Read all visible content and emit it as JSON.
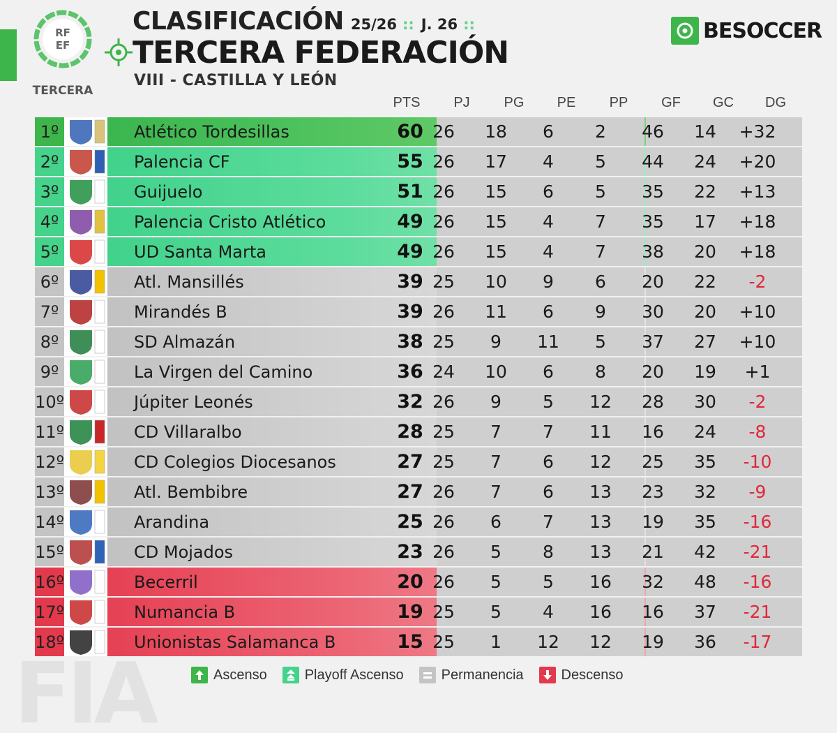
{
  "header": {
    "title": "CLASIFICACIÓN",
    "season": "25/26",
    "separator": "::",
    "round": "J. 26",
    "league": "TERCERA FEDERACIÓN",
    "group": "VIII - CASTILLA Y LEÓN"
  },
  "rfef_logo": {
    "line1": "RF",
    "line2": "EF",
    "caption": "TERCERA"
  },
  "brand": {
    "name": "BESOCCER",
    "color": "#3db54a"
  },
  "columns": [
    "PTS",
    "PJ",
    "PG",
    "PE",
    "PP",
    "GF",
    "GC",
    "DG"
  ],
  "colors": {
    "ascenso": "#3db54a",
    "playoff": "#45d28a",
    "permanencia": "#c4c4c4",
    "descenso": "#e3394c",
    "negative_dg": "#e0283a"
  },
  "rows": [
    {
      "pos": "1º",
      "team": "Atlético Tordesillas",
      "zone": "ascenso",
      "crest": "tordesillas-crest",
      "pts": "60",
      "pj": "26",
      "pg": "18",
      "pe": "6",
      "pp": "2",
      "gf": "46",
      "gc": "14",
      "dg": "+32"
    },
    {
      "pos": "2º",
      "team": "Palencia CF",
      "zone": "playoff",
      "crest": "palencia-crest",
      "pts": "55",
      "pj": "26",
      "pg": "17",
      "pe": "4",
      "pp": "5",
      "gf": "44",
      "gc": "24",
      "dg": "+20"
    },
    {
      "pos": "3º",
      "team": "Guijuelo",
      "zone": "playoff",
      "crest": "guijuelo-crest",
      "pts": "51",
      "pj": "26",
      "pg": "15",
      "pe": "6",
      "pp": "5",
      "gf": "35",
      "gc": "22",
      "dg": "+13"
    },
    {
      "pos": "4º",
      "team": "Palencia Cristo Atlético",
      "zone": "playoff",
      "crest": "cristo-crest",
      "pts": "49",
      "pj": "26",
      "pg": "15",
      "pe": "4",
      "pp": "7",
      "gf": "35",
      "gc": "17",
      "dg": "+18"
    },
    {
      "pos": "5º",
      "team": "UD Santa Marta",
      "zone": "playoff",
      "crest": "santa-marta-crest",
      "pts": "49",
      "pj": "26",
      "pg": "15",
      "pe": "4",
      "pp": "7",
      "gf": "38",
      "gc": "20",
      "dg": "+18"
    },
    {
      "pos": "6º",
      "team": "Atl. Mansillés",
      "zone": "permanencia",
      "crest": "mansilles-crest",
      "pts": "39",
      "pj": "25",
      "pg": "10",
      "pe": "9",
      "pp": "6",
      "gf": "20",
      "gc": "22",
      "dg": "-2"
    },
    {
      "pos": "7º",
      "team": "Mirandés B",
      "zone": "permanencia",
      "crest": "mirandes-crest",
      "pts": "39",
      "pj": "26",
      "pg": "11",
      "pe": "6",
      "pp": "9",
      "gf": "30",
      "gc": "20",
      "dg": "+10"
    },
    {
      "pos": "8º",
      "team": "SD Almazán",
      "zone": "permanencia",
      "crest": "almazan-crest",
      "pts": "38",
      "pj": "25",
      "pg": "9",
      "pe": "11",
      "pp": "5",
      "gf": "37",
      "gc": "27",
      "dg": "+10"
    },
    {
      "pos": "9º",
      "team": "La Virgen del Camino",
      "zone": "permanencia",
      "crest": "virgen-camino-crest",
      "pts": "36",
      "pj": "24",
      "pg": "10",
      "pe": "6",
      "pp": "8",
      "gf": "20",
      "gc": "19",
      "dg": "+1"
    },
    {
      "pos": "10º",
      "team": "Júpiter Leonés",
      "zone": "permanencia",
      "crest": "jupiter-crest",
      "pts": "32",
      "pj": "26",
      "pg": "9",
      "pe": "5",
      "pp": "12",
      "gf": "28",
      "gc": "30",
      "dg": "-2"
    },
    {
      "pos": "11º",
      "team": "CD Villaralbo",
      "zone": "permanencia",
      "crest": "villaralbo-crest",
      "pts": "28",
      "pj": "25",
      "pg": "7",
      "pe": "7",
      "pp": "11",
      "gf": "16",
      "gc": "24",
      "dg": "-8"
    },
    {
      "pos": "12º",
      "team": "CD Colegios Diocesanos",
      "zone": "permanencia",
      "crest": "diocesanos-crest",
      "pts": "27",
      "pj": "25",
      "pg": "7",
      "pe": "6",
      "pp": "12",
      "gf": "25",
      "gc": "35",
      "dg": "-10"
    },
    {
      "pos": "13º",
      "team": "Atl. Bembibre",
      "zone": "permanencia",
      "crest": "bembibre-crest",
      "pts": "27",
      "pj": "26",
      "pg": "7",
      "pe": "6",
      "pp": "13",
      "gf": "23",
      "gc": "32",
      "dg": "-9"
    },
    {
      "pos": "14º",
      "team": "Arandina",
      "zone": "permanencia",
      "crest": "arandina-crest",
      "pts": "25",
      "pj": "26",
      "pg": "6",
      "pe": "7",
      "pp": "13",
      "gf": "19",
      "gc": "35",
      "dg": "-16"
    },
    {
      "pos": "15º",
      "team": "CD Mojados",
      "zone": "permanencia",
      "crest": "mojados-crest",
      "pts": "23",
      "pj": "26",
      "pg": "5",
      "pe": "8",
      "pp": "13",
      "gf": "21",
      "gc": "42",
      "dg": "-21"
    },
    {
      "pos": "16º",
      "team": "Becerril",
      "zone": "descenso",
      "crest": "becerril-crest",
      "pts": "20",
      "pj": "26",
      "pg": "5",
      "pe": "5",
      "pp": "16",
      "gf": "32",
      "gc": "48",
      "dg": "-16"
    },
    {
      "pos": "17º",
      "team": "Numancia B",
      "zone": "descenso",
      "crest": "numancia-crest",
      "pts": "19",
      "pj": "25",
      "pg": "5",
      "pe": "4",
      "pp": "16",
      "gf": "16",
      "gc": "37",
      "dg": "-21"
    },
    {
      "pos": "18º",
      "team": "Unionistas Salamanca B",
      "zone": "descenso",
      "crest": "unionistas-crest",
      "pts": "15",
      "pj": "25",
      "pg": "1",
      "pe": "12",
      "pp": "12",
      "gf": "19",
      "gc": "36",
      "dg": "-17"
    }
  ],
  "legend": [
    {
      "label": "Ascenso",
      "zone": "ascenso",
      "icon": "arrow-up-icon"
    },
    {
      "label": "Playoff Ascenso",
      "zone": "playoff",
      "icon": "double-arrow-up-icon"
    },
    {
      "label": "Permanencia",
      "zone": "permanencia",
      "icon": "equal-icon"
    },
    {
      "label": "Descenso",
      "zone": "descenso",
      "icon": "arrow-down-icon"
    }
  ]
}
